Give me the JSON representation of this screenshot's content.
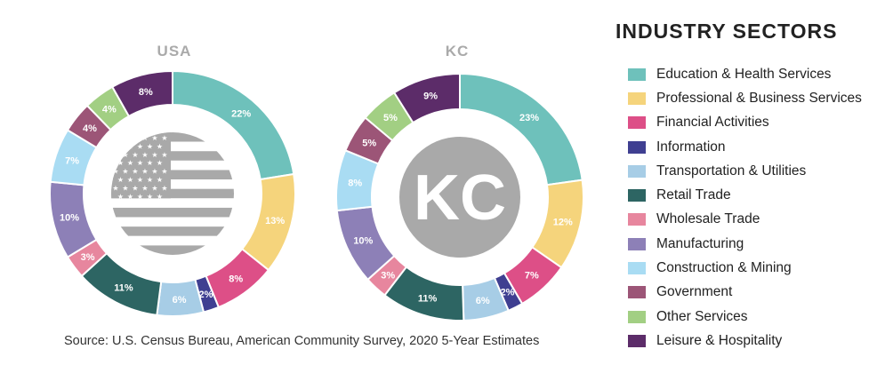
{
  "colors": {
    "Education & Health Services": "#6ec1bb",
    "Professional & Business Services": "#f5d47c",
    "Financial Activities": "#dd4f87",
    "Information": "#3f3f91",
    "Transportation & Utilities": "#a7cde6",
    "Retail Trade": "#2d6563",
    "Wholesale Trade": "#e7869e",
    "Manufacturing": "#8d80b7",
    "Construction & Mining": "#a9dcf3",
    "Government": "#9c5577",
    "Other Services": "#a2cf83",
    "Leisure & Hospitality": "#5c2c69"
  },
  "legend": {
    "title": "INDUSTRY SECTORS",
    "items": [
      "Education & Health Services",
      "Professional & Business Services",
      "Financial Activities",
      "Information",
      "Transportation & Utilities",
      "Retail Trade",
      "Wholesale Trade",
      "Manufacturing",
      "Construction & Mining",
      "Government",
      "Other Services",
      "Leisure & Hospitality"
    ]
  },
  "source": "Source: U.S. Census Bureau, American Community Survey, 2020 5-Year Estimates",
  "chart_data": [
    {
      "type": "pie",
      "title": "USA",
      "center_icon": "us-flag-icon",
      "categories": [
        "Education & Health Services",
        "Professional & Business Services",
        "Financial Activities",
        "Information",
        "Transportation & Utilities",
        "Retail Trade",
        "Wholesale Trade",
        "Manufacturing",
        "Construction & Mining",
        "Government",
        "Other Services",
        "Leisure & Hospitality"
      ],
      "values": [
        22,
        13,
        8,
        2,
        6,
        11,
        3,
        10,
        7,
        4,
        4,
        8
      ],
      "labels": [
        "22%",
        "13%",
        "8%",
        "2%",
        "6%",
        "11%",
        "3%",
        "10%",
        "7%",
        "4%",
        "4%",
        "8%"
      ]
    },
    {
      "type": "pie",
      "title": "KC",
      "center_icon": "kc-logo-icon",
      "center_text": "KC",
      "categories": [
        "Education & Health Services",
        "Professional & Business Services",
        "Financial Activities",
        "Information",
        "Transportation & Utilities",
        "Retail Trade",
        "Wholesale Trade",
        "Manufacturing",
        "Construction & Mining",
        "Government",
        "Other Services",
        "Leisure & Hospitality"
      ],
      "values": [
        23,
        12,
        7,
        2,
        6,
        11,
        3,
        10,
        8,
        5,
        5,
        9
      ],
      "labels": [
        "23%",
        "12%",
        "7%",
        "2%",
        "6%",
        "11%",
        "3%",
        "10%",
        "8%",
        "5%",
        "5%",
        "9%"
      ]
    }
  ]
}
